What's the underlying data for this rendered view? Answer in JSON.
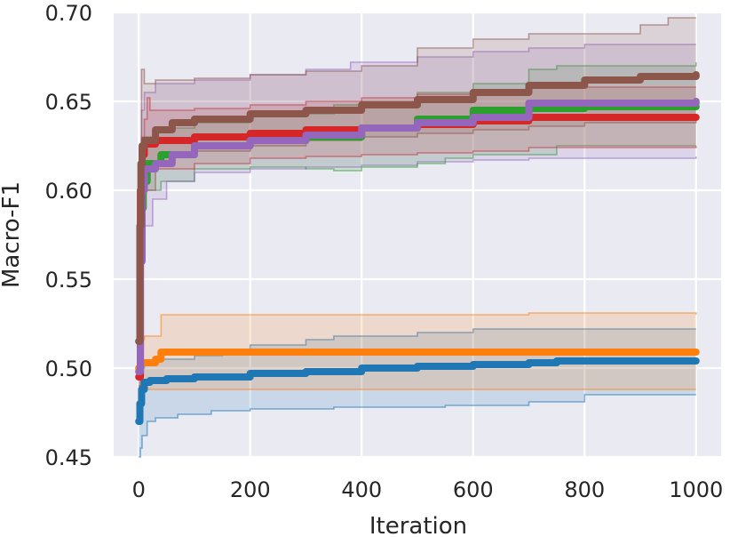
{
  "chart_data": {
    "type": "line",
    "title": "",
    "xlabel": "Iteration",
    "ylabel": "Macro-F1",
    "xlim": [
      -45,
      1045
    ],
    "ylim": [
      0.45,
      0.7
    ],
    "xticks": [
      0,
      200,
      400,
      600,
      800,
      1000
    ],
    "yticks": [
      0.45,
      0.5,
      0.55,
      0.6,
      0.65,
      0.7
    ],
    "xtick_labels": [
      "0",
      "200",
      "400",
      "600",
      "800",
      "1000"
    ],
    "ytick_labels": [
      "0.45",
      "0.50",
      "0.55",
      "0.60",
      "0.65",
      "0.70"
    ],
    "grid": true,
    "style": {
      "background": "#eaeaf2",
      "grid_color": "#ffffff"
    },
    "series": [
      {
        "name": "blue",
        "color": "#1f77b4",
        "mean": [
          [
            0,
            0.47
          ],
          [
            2,
            0.48
          ],
          [
            5,
            0.488
          ],
          [
            10,
            0.492
          ],
          [
            20,
            0.493
          ],
          [
            50,
            0.494
          ],
          [
            100,
            0.495
          ],
          [
            200,
            0.497
          ],
          [
            300,
            0.498
          ],
          [
            400,
            0.5
          ],
          [
            500,
            0.501
          ],
          [
            600,
            0.502
          ],
          [
            700,
            0.503
          ],
          [
            750,
            0.504
          ],
          [
            1000,
            0.504
          ]
        ],
        "upper": [
          [
            0,
            0.49
          ],
          [
            5,
            0.5
          ],
          [
            10,
            0.503
          ],
          [
            30,
            0.505
          ],
          [
            100,
            0.507
          ],
          [
            150,
            0.51
          ],
          [
            200,
            0.513
          ],
          [
            300,
            0.516
          ],
          [
            350,
            0.518
          ],
          [
            500,
            0.52
          ],
          [
            600,
            0.522
          ],
          [
            1000,
            0.522
          ]
        ],
        "lower": [
          [
            0,
            0.45
          ],
          [
            3,
            0.455
          ],
          [
            6,
            0.462
          ],
          [
            15,
            0.47
          ],
          [
            30,
            0.472
          ],
          [
            70,
            0.474
          ],
          [
            130,
            0.476
          ],
          [
            200,
            0.477
          ],
          [
            350,
            0.478
          ],
          [
            550,
            0.479
          ],
          [
            700,
            0.481
          ],
          [
            800,
            0.485
          ],
          [
            1000,
            0.485
          ]
        ]
      },
      {
        "name": "orange",
        "color": "#ff7f0e",
        "mean": [
          [
            0,
            0.5
          ],
          [
            3,
            0.503
          ],
          [
            10,
            0.503
          ],
          [
            30,
            0.505
          ],
          [
            40,
            0.509
          ],
          [
            200,
            0.509
          ],
          [
            400,
            0.509
          ],
          [
            600,
            0.509
          ],
          [
            800,
            0.509
          ],
          [
            1000,
            0.509
          ]
        ],
        "upper": [
          [
            0,
            0.516
          ],
          [
            10,
            0.518
          ],
          [
            35,
            0.518
          ],
          [
            40,
            0.53
          ],
          [
            400,
            0.53
          ],
          [
            700,
            0.531
          ],
          [
            1000,
            0.53
          ]
        ],
        "lower": [
          [
            0,
            0.488
          ],
          [
            40,
            0.488
          ],
          [
            200,
            0.488
          ],
          [
            600,
            0.488
          ],
          [
            800,
            0.488
          ],
          [
            1000,
            0.488
          ]
        ]
      },
      {
        "name": "green",
        "color": "#2ca02c",
        "mean": [
          [
            0,
            0.515
          ],
          [
            2,
            0.56
          ],
          [
            4,
            0.59
          ],
          [
            8,
            0.605
          ],
          [
            15,
            0.615
          ],
          [
            40,
            0.62
          ],
          [
            100,
            0.625
          ],
          [
            200,
            0.628
          ],
          [
            300,
            0.63
          ],
          [
            400,
            0.635
          ],
          [
            500,
            0.64
          ],
          [
            600,
            0.645
          ],
          [
            700,
            0.646
          ],
          [
            800,
            0.647
          ],
          [
            1000,
            0.647
          ]
        ],
        "upper": [
          [
            0,
            0.56
          ],
          [
            5,
            0.62
          ],
          [
            10,
            0.63
          ],
          [
            30,
            0.635
          ],
          [
            100,
            0.638
          ],
          [
            200,
            0.643
          ],
          [
            350,
            0.648
          ],
          [
            400,
            0.65
          ],
          [
            500,
            0.655
          ],
          [
            600,
            0.66
          ],
          [
            700,
            0.668
          ],
          [
            750,
            0.67
          ],
          [
            1000,
            0.672
          ]
        ],
        "lower": [
          [
            0,
            0.48
          ],
          [
            5,
            0.58
          ],
          [
            10,
            0.6
          ],
          [
            40,
            0.605
          ],
          [
            100,
            0.612
          ],
          [
            200,
            0.613
          ],
          [
            300,
            0.612
          ],
          [
            350,
            0.611
          ],
          [
            400,
            0.613
          ],
          [
            500,
            0.615
          ],
          [
            550,
            0.618
          ],
          [
            600,
            0.62
          ],
          [
            750,
            0.625
          ],
          [
            1000,
            0.625
          ]
        ]
      },
      {
        "name": "red",
        "color": "#d62728",
        "mean": [
          [
            0,
            0.495
          ],
          [
            3,
            0.6
          ],
          [
            6,
            0.62
          ],
          [
            10,
            0.626
          ],
          [
            30,
            0.628
          ],
          [
            100,
            0.63
          ],
          [
            200,
            0.632
          ],
          [
            300,
            0.634
          ],
          [
            400,
            0.635
          ],
          [
            500,
            0.637
          ],
          [
            600,
            0.639
          ],
          [
            700,
            0.641
          ],
          [
            800,
            0.641
          ],
          [
            1000,
            0.641
          ]
        ],
        "upper": [
          [
            0,
            0.52
          ],
          [
            5,
            0.63
          ],
          [
            10,
            0.64
          ],
          [
            15,
            0.652
          ],
          [
            20,
            0.645
          ],
          [
            100,
            0.646
          ],
          [
            200,
            0.648
          ],
          [
            300,
            0.65
          ],
          [
            400,
            0.652
          ],
          [
            500,
            0.654
          ],
          [
            600,
            0.656
          ],
          [
            700,
            0.658
          ],
          [
            1000,
            0.658
          ]
        ],
        "lower": [
          [
            0,
            0.47
          ],
          [
            5,
            0.59
          ],
          [
            10,
            0.605
          ],
          [
            20,
            0.612
          ],
          [
            100,
            0.615
          ],
          [
            200,
            0.618
          ],
          [
            300,
            0.619
          ],
          [
            400,
            0.62
          ],
          [
            500,
            0.621
          ],
          [
            600,
            0.622
          ],
          [
            700,
            0.624
          ],
          [
            1000,
            0.625
          ]
        ]
      },
      {
        "name": "purple",
        "color": "#9467bd",
        "mean": [
          [
            0,
            0.498
          ],
          [
            3,
            0.56
          ],
          [
            6,
            0.6
          ],
          [
            10,
            0.612
          ],
          [
            30,
            0.615
          ],
          [
            60,
            0.62
          ],
          [
            100,
            0.625
          ],
          [
            200,
            0.628
          ],
          [
            300,
            0.631
          ],
          [
            400,
            0.635
          ],
          [
            500,
            0.638
          ],
          [
            600,
            0.641
          ],
          [
            700,
            0.649
          ],
          [
            800,
            0.649
          ],
          [
            1000,
            0.65
          ]
        ],
        "upper": [
          [
            0,
            0.53
          ],
          [
            5,
            0.645
          ],
          [
            10,
            0.655
          ],
          [
            30,
            0.66
          ],
          [
            100,
            0.662
          ],
          [
            200,
            0.665
          ],
          [
            300,
            0.668
          ],
          [
            380,
            0.672
          ],
          [
            500,
            0.675
          ],
          [
            600,
            0.678
          ],
          [
            700,
            0.68
          ],
          [
            800,
            0.682
          ],
          [
            1000,
            0.682
          ]
        ],
        "lower": [
          [
            0,
            0.47
          ],
          [
            5,
            0.56
          ],
          [
            10,
            0.58
          ],
          [
            25,
            0.595
          ],
          [
            50,
            0.605
          ],
          [
            100,
            0.61
          ],
          [
            200,
            0.612
          ],
          [
            300,
            0.613
          ],
          [
            400,
            0.614
          ],
          [
            500,
            0.616
          ],
          [
            600,
            0.617
          ],
          [
            700,
            0.618
          ],
          [
            1000,
            0.619
          ]
        ]
      },
      {
        "name": "brown",
        "color": "#8c564b",
        "mean": [
          [
            0,
            0.515
          ],
          [
            2,
            0.58
          ],
          [
            4,
            0.615
          ],
          [
            6,
            0.625
          ],
          [
            10,
            0.628
          ],
          [
            30,
            0.634
          ],
          [
            60,
            0.638
          ],
          [
            100,
            0.64
          ],
          [
            200,
            0.643
          ],
          [
            300,
            0.645
          ],
          [
            400,
            0.648
          ],
          [
            500,
            0.651
          ],
          [
            600,
            0.655
          ],
          [
            700,
            0.659
          ],
          [
            800,
            0.662
          ],
          [
            900,
            0.664
          ],
          [
            1000,
            0.665
          ]
        ],
        "upper": [
          [
            0,
            0.56
          ],
          [
            5,
            0.668
          ],
          [
            10,
            0.66
          ],
          [
            30,
            0.662
          ],
          [
            100,
            0.663
          ],
          [
            200,
            0.665
          ],
          [
            300,
            0.667
          ],
          [
            400,
            0.67
          ],
          [
            500,
            0.68
          ],
          [
            600,
            0.685
          ],
          [
            700,
            0.688
          ],
          [
            900,
            0.693
          ],
          [
            950,
            0.697
          ],
          [
            1000,
            0.697
          ]
        ],
        "lower": [
          [
            0,
            0.49
          ],
          [
            4,
            0.59
          ],
          [
            10,
            0.6
          ],
          [
            30,
            0.615
          ],
          [
            60,
            0.62
          ],
          [
            100,
            0.622
          ],
          [
            200,
            0.625
          ],
          [
            300,
            0.628
          ],
          [
            400,
            0.63
          ],
          [
            500,
            0.632
          ],
          [
            600,
            0.634
          ],
          [
            700,
            0.636
          ],
          [
            800,
            0.638
          ],
          [
            1000,
            0.64
          ]
        ]
      }
    ]
  }
}
